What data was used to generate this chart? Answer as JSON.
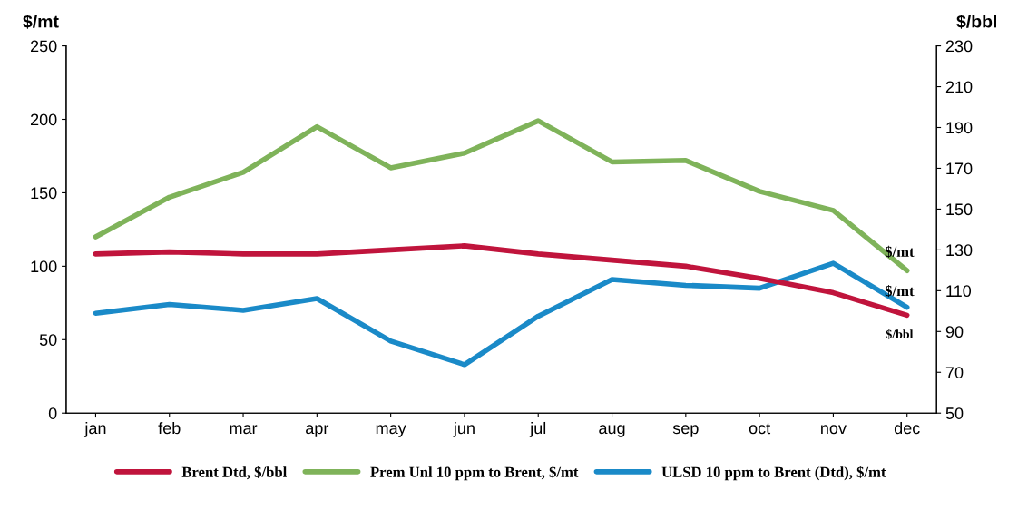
{
  "chart_data": {
    "type": "line",
    "ylabel": "$/mt",
    "y2label": "$/bbl",
    "categories": [
      "jan",
      "feb",
      "mar",
      "apr",
      "may",
      "jun",
      "jul",
      "aug",
      "sep",
      "oct",
      "nov",
      "dec"
    ],
    "series": [
      {
        "name": "Brent Dtd, $/bbl",
        "color": "#c0143c",
        "axis": "y2",
        "values": [
          128,
          129,
          128,
          128,
          130,
          132,
          128,
          125,
          122,
          116,
          109,
          98
        ]
      },
      {
        "name": "Prem Unl 10 ppm to Brent, $/mt",
        "color": "#7fb35a",
        "values": [
          120,
          147,
          164,
          195,
          167,
          177,
          199,
          171,
          172,
          151,
          138,
          97
        ]
      },
      {
        "name": "ULSD 10 ppm to Brent (Dtd), $/mt",
        "color": "#1a8ac8",
        "values": [
          68,
          74,
          70,
          78,
          49,
          33,
          66,
          91,
          87,
          85,
          102,
          72
        ]
      }
    ],
    "annotations": [
      "$/bbl",
      "$/mt",
      "$/mt"
    ],
    "ylim": [
      0,
      250
    ],
    "yticks": [
      0,
      50,
      100,
      150,
      200,
      250
    ],
    "y2lim": [
      50,
      230
    ],
    "y2ticks": [
      50,
      70,
      90,
      110,
      130,
      150,
      170,
      190,
      210,
      230
    ],
    "grid": false,
    "legend": "bottom",
    "line_style": "solid",
    "marker": "none"
  }
}
